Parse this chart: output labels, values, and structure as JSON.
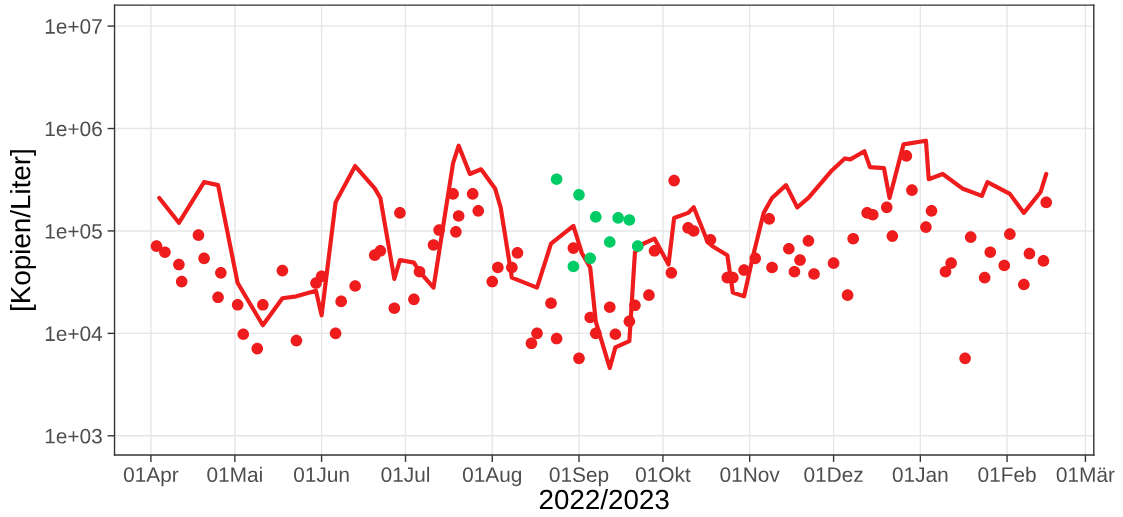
{
  "chart_data": {
    "type": "scatter",
    "xlabel": "2022/2023",
    "ylabel": "[Kopien/Liter]",
    "log": "y",
    "grid": true,
    "line_style": "solid",
    "xlim": [
      "2022-03-19",
      "2023-03-04"
    ],
    "xticks": [
      {
        "value": "2022-04-01",
        "label": "01Apr"
      },
      {
        "value": "2022-05-01",
        "label": "01Mai"
      },
      {
        "value": "2022-06-01",
        "label": "01Jun"
      },
      {
        "value": "2022-07-01",
        "label": "01Jul"
      },
      {
        "value": "2022-08-01",
        "label": "01Aug"
      },
      {
        "value": "2022-09-01",
        "label": "01Sep"
      },
      {
        "value": "2022-10-01",
        "label": "01Okt"
      },
      {
        "value": "2022-11-01",
        "label": "01Nov"
      },
      {
        "value": "2022-12-01",
        "label": "01Dez"
      },
      {
        "value": "2023-01-01",
        "label": "01Jan"
      },
      {
        "value": "2023-02-01",
        "label": "01Feb"
      },
      {
        "value": "2023-03-01",
        "label": "01Mär"
      }
    ],
    "ylim": [
      650,
      16000000
    ],
    "yticks": [
      {
        "value": 1000,
        "label": "1e+03"
      },
      {
        "value": 10000,
        "label": "1e+04"
      },
      {
        "value": 100000,
        "label": "1e+05"
      },
      {
        "value": 1000000,
        "label": "1e+06"
      },
      {
        "value": 10000000,
        "label": "1e+07"
      }
    ],
    "series": [
      {
        "type": "line",
        "marker": "none",
        "color": "#ee1c1c",
        "x": [
          "2022-04-04",
          "2022-04-11",
          "2022-04-20",
          "2022-04-25",
          "2022-05-02",
          "2022-05-11",
          "2022-05-18",
          "2022-05-23",
          "2022-05-30",
          "2022-06-01",
          "2022-06-06",
          "2022-06-13",
          "2022-06-20",
          "2022-06-22",
          "2022-06-27",
          "2022-06-29",
          "2022-07-04",
          "2022-07-06",
          "2022-07-11",
          "2022-07-18",
          "2022-07-20",
          "2022-07-24",
          "2022-07-28",
          "2022-08-02",
          "2022-08-04",
          "2022-08-08",
          "2022-08-17",
          "2022-08-22",
          "2022-08-30",
          "2022-09-02",
          "2022-09-05",
          "2022-09-07",
          "2022-09-12",
          "2022-09-14",
          "2022-09-19",
          "2022-09-21",
          "2022-09-24",
          "2022-09-28",
          "2022-10-03",
          "2022-10-05",
          "2022-10-10",
          "2022-10-12",
          "2022-10-17",
          "2022-10-19",
          "2022-10-24",
          "2022-10-26",
          "2022-10-30",
          "2022-11-02",
          "2022-11-06",
          "2022-11-09",
          "2022-11-14",
          "2022-11-18",
          "2022-11-22",
          "2022-11-30",
          "2022-12-05",
          "2022-12-07",
          "2022-12-12",
          "2022-12-14",
          "2022-12-19",
          "2022-12-21",
          "2022-12-26",
          "2023-01-03",
          "2023-01-04",
          "2023-01-09",
          "2023-01-16",
          "2023-01-23",
          "2023-01-25",
          "2023-02-02",
          "2023-02-07",
          "2023-02-13",
          "2023-02-15"
        ],
        "values": [
          210000,
          120000,
          300000,
          280000,
          31000,
          12000,
          22000,
          23000,
          26000,
          15000,
          190000,
          430000,
          260000,
          210000,
          34000,
          52000,
          49000,
          40000,
          28000,
          460000,
          680000,
          360000,
          400000,
          260000,
          170000,
          35000,
          28000,
          75000,
          112000,
          61000,
          44000,
          13000,
          4600,
          7300,
          8400,
          62000,
          75000,
          84000,
          47000,
          134000,
          150000,
          170000,
          78000,
          70000,
          58000,
          25000,
          23000,
          54000,
          150000,
          210000,
          280000,
          170000,
          210000,
          380000,
          510000,
          500000,
          600000,
          420000,
          410000,
          210000,
          700000,
          760000,
          320000,
          360000,
          260000,
          220000,
          300000,
          230000,
          150000,
          240000,
          360000
        ]
      },
      {
        "marker": "circle",
        "color": "#ee1c1c",
        "x": [
          "2022-04-03",
          "2022-04-06",
          "2022-04-11",
          "2022-04-12",
          "2022-04-18",
          "2022-04-20",
          "2022-04-25",
          "2022-04-26",
          "2022-05-02",
          "2022-05-04",
          "2022-05-09",
          "2022-05-11",
          "2022-05-18",
          "2022-05-23",
          "2022-05-30",
          "2022-06-01",
          "2022-06-06",
          "2022-06-08",
          "2022-06-13",
          "2022-06-20",
          "2022-06-22",
          "2022-06-27",
          "2022-06-29",
          "2022-07-04",
          "2022-07-06",
          "2022-07-11",
          "2022-07-13",
          "2022-07-18",
          "2022-07-19",
          "2022-07-20",
          "2022-07-25",
          "2022-07-27",
          "2022-08-01",
          "2022-08-03",
          "2022-08-08",
          "2022-08-10",
          "2022-08-15",
          "2022-08-17",
          "2022-08-22",
          "2022-08-24",
          "2022-08-30",
          "2022-09-01",
          "2022-09-05",
          "2022-09-07",
          "2022-09-12",
          "2022-09-14",
          "2022-09-19",
          "2022-09-21",
          "2022-09-26",
          "2022-09-28",
          "2022-10-04",
          "2022-10-05",
          "2022-10-10",
          "2022-10-12",
          "2022-10-18",
          "2022-10-24",
          "2022-10-26",
          "2022-10-30",
          "2022-11-03",
          "2022-11-08",
          "2022-11-09",
          "2022-11-15",
          "2022-11-17",
          "2022-11-19",
          "2022-11-22",
          "2022-11-24",
          "2022-12-01",
          "2022-12-06",
          "2022-12-08",
          "2022-12-13",
          "2022-12-15",
          "2022-12-20",
          "2022-12-22",
          "2022-12-27",
          "2022-12-29",
          "2023-01-03",
          "2023-01-05",
          "2023-01-10",
          "2023-01-12",
          "2023-01-17",
          "2023-01-19",
          "2023-01-24",
          "2023-01-26",
          "2023-01-31",
          "2023-02-02",
          "2023-02-07",
          "2023-02-09",
          "2023-02-14",
          "2023-02-15"
        ],
        "values": [
          71000,
          62000,
          47000,
          32000,
          91000,
          54000,
          22500,
          39000,
          19000,
          9800,
          7100,
          19000,
          41000,
          8500,
          31000,
          36000,
          10000,
          20500,
          29000,
          58000,
          64000,
          17600,
          150000,
          21500,
          40000,
          73000,
          102000,
          230000,
          98000,
          140000,
          230000,
          157000,
          32000,
          44000,
          44000,
          61000,
          8000,
          10000,
          19700,
          8900,
          68000,
          5700,
          14300,
          10000,
          18000,
          9800,
          13100,
          18800,
          23600,
          64000,
          39000,
          310000,
          107000,
          100000,
          82000,
          35000,
          35000,
          41500,
          54000,
          131000,
          44000,
          67000,
          40000,
          52000,
          80000,
          38000,
          48500,
          23600,
          84000,
          150000,
          144000,
          170000,
          89000,
          540000,
          250000,
          109000,
          157000,
          40000,
          48500,
          5700,
          87000,
          35000,
          62000,
          46000,
          93000,
          30000,
          60000,
          51000,
          190000
        ]
      },
      {
        "marker": "circle",
        "color": "#00cc66",
        "x": [
          "2022-08-24",
          "2022-08-30",
          "2022-09-01",
          "2022-09-05",
          "2022-09-07",
          "2022-09-12",
          "2022-09-15",
          "2022-09-19",
          "2022-09-22"
        ],
        "values": [
          320000,
          45000,
          225000,
          54000,
          137000,
          78000,
          134000,
          128000,
          71000
        ]
      }
    ]
  }
}
